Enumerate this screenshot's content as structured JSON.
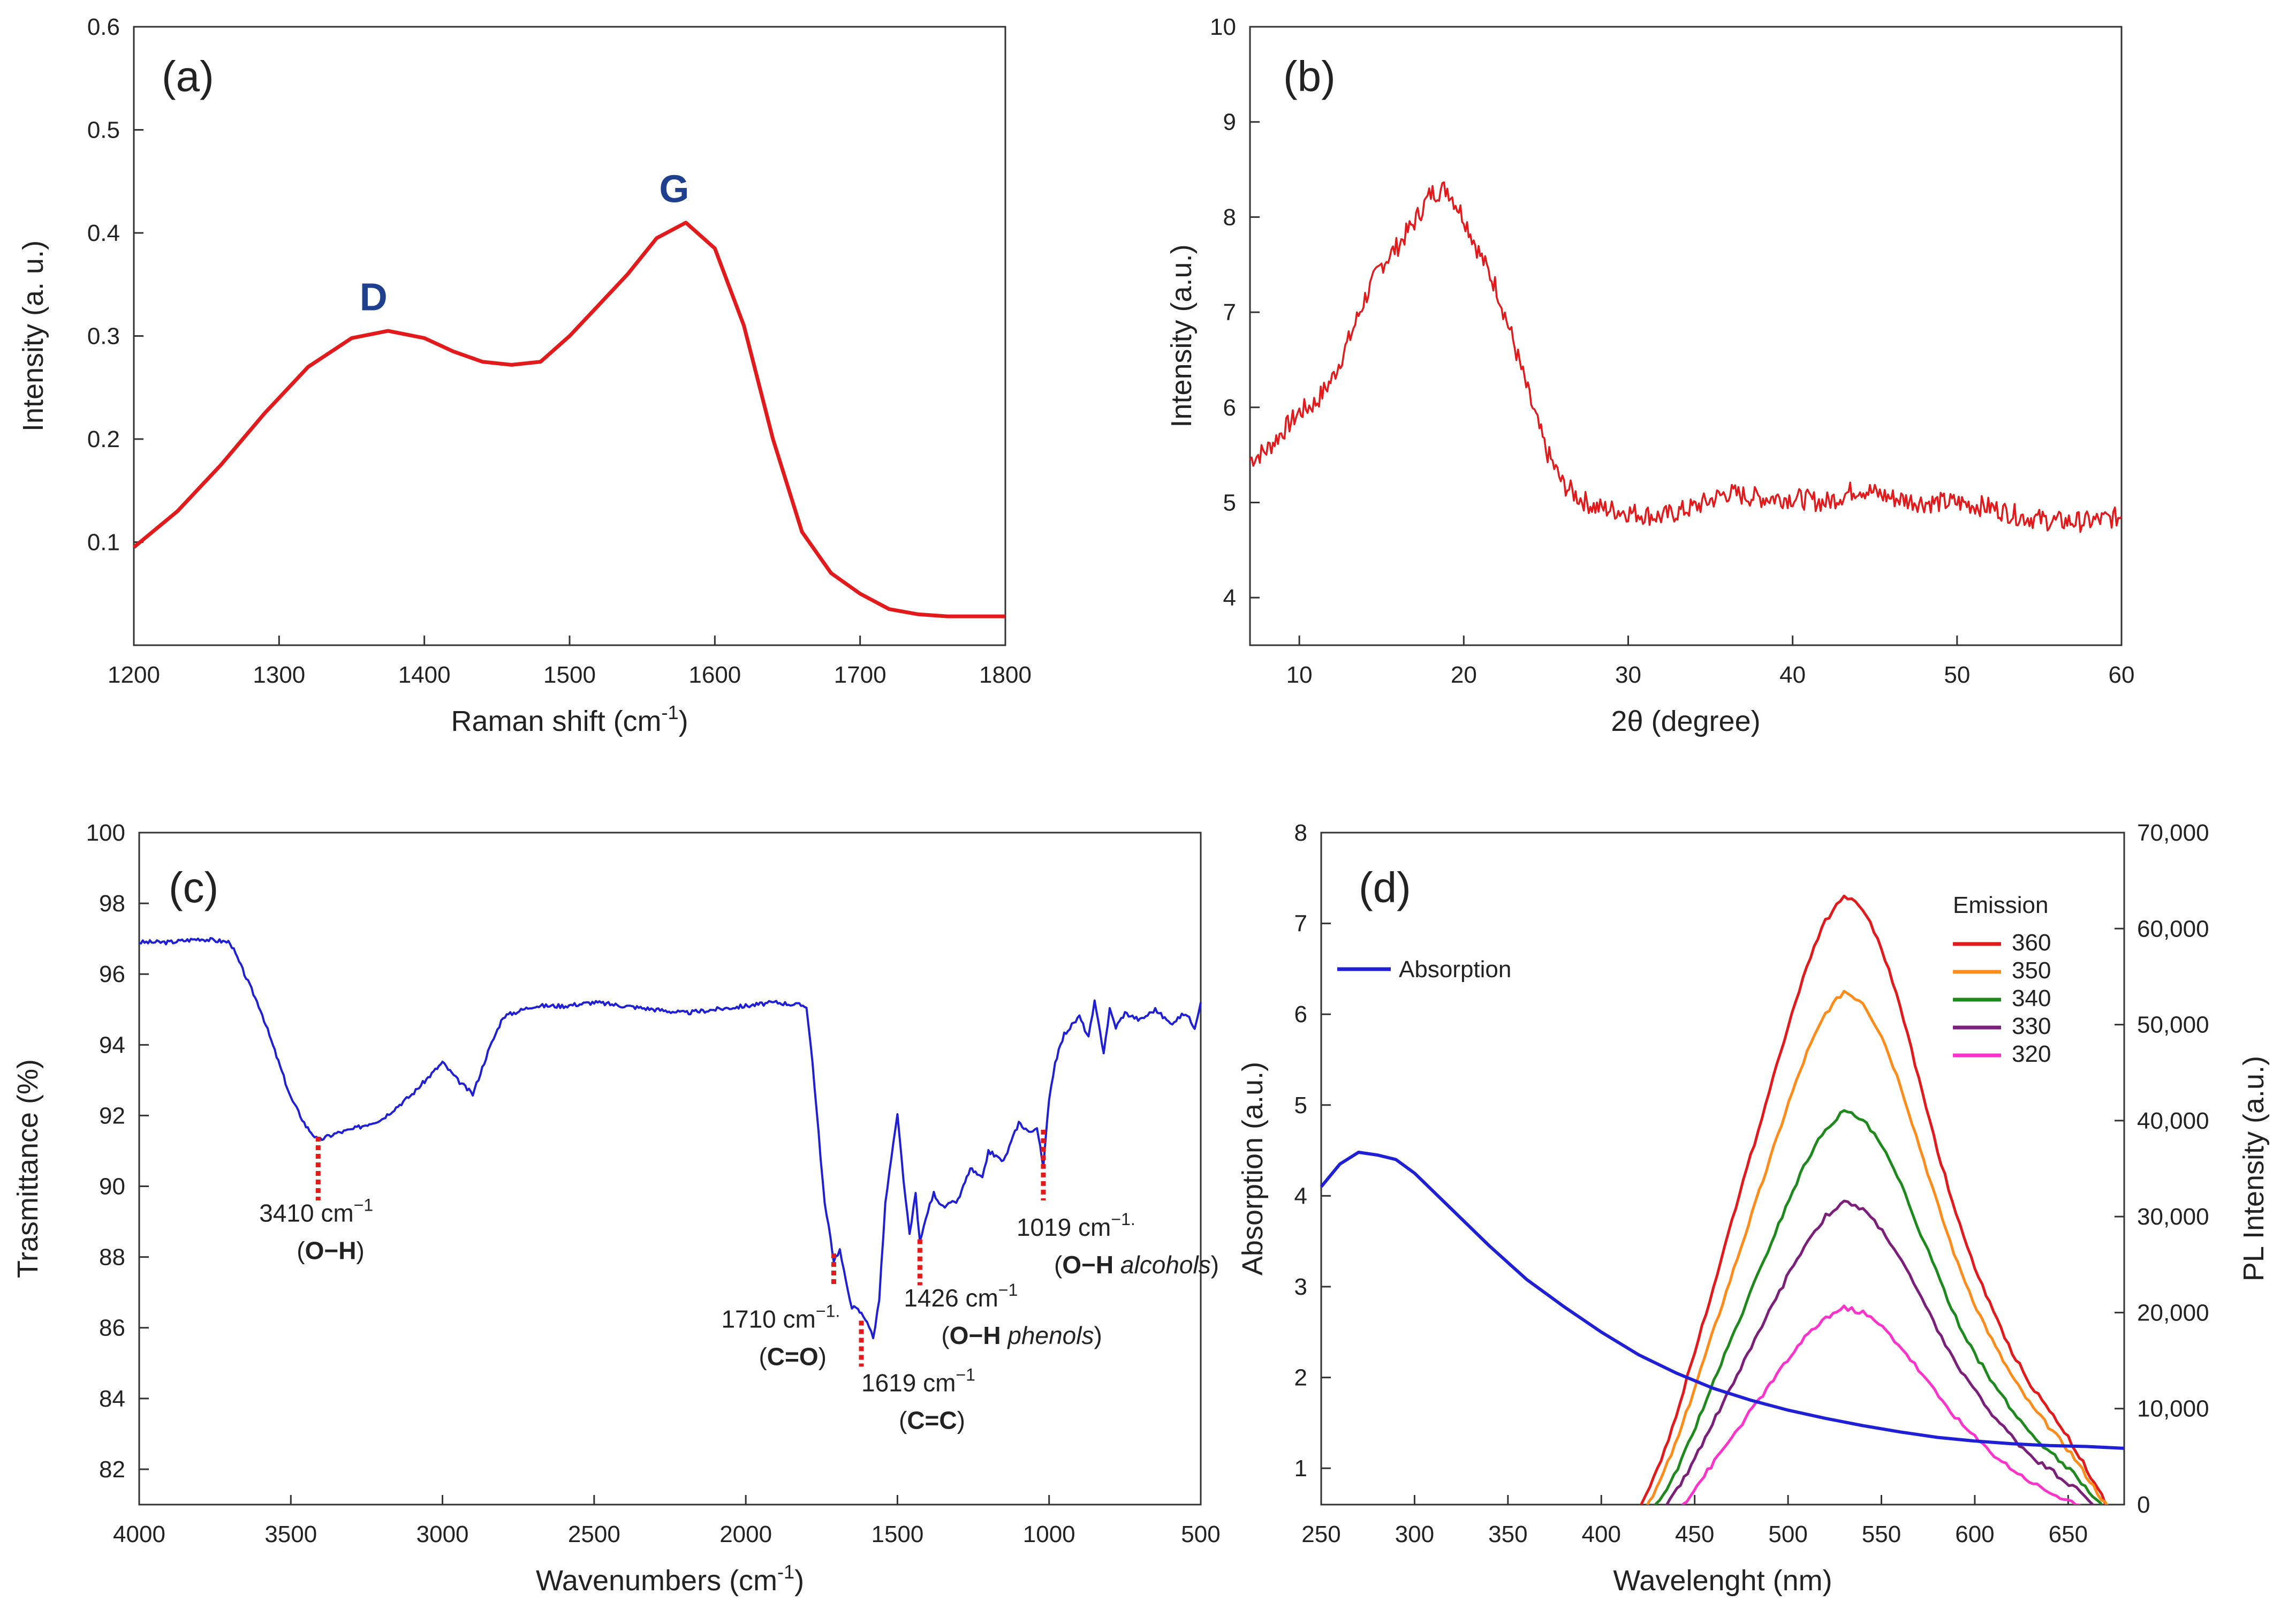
{
  "chart_data": [
    {
      "id": "a",
      "type": "line",
      "panel_label": "(a)",
      "xlabel": "Raman shift (cm",
      "xlabel_sup": "-1",
      "xlabel_end": ")",
      "ylabel": "Intensity (a. u.)",
      "xlim": [
        1200,
        1800
      ],
      "ylim": [
        0,
        0.6
      ],
      "xticks": [
        1200,
        1300,
        1400,
        1500,
        1600,
        1700,
        1800
      ],
      "yticks": [
        0.1,
        0.2,
        0.3,
        0.4,
        0.5,
        0.6
      ],
      "series": [
        {
          "name": "Raman",
          "color": "#e31a1c",
          "x": [
            1200,
            1230,
            1260,
            1290,
            1320,
            1350,
            1375,
            1400,
            1420,
            1440,
            1460,
            1480,
            1500,
            1520,
            1540,
            1560,
            1580,
            1600,
            1620,
            1640,
            1660,
            1680,
            1700,
            1720,
            1740,
            1760,
            1800
          ],
          "y": [
            0.095,
            0.13,
            0.175,
            0.225,
            0.27,
            0.298,
            0.305,
            0.298,
            0.285,
            0.275,
            0.272,
            0.275,
            0.3,
            0.33,
            0.36,
            0.395,
            0.41,
            0.385,
            0.31,
            0.2,
            0.11,
            0.07,
            0.05,
            0.035,
            0.03,
            0.028,
            0.028
          ]
        }
      ],
      "annotations": [
        {
          "text": "D",
          "x": 1365,
          "y": 0.325
        },
        {
          "text": "G",
          "x": 1572,
          "y": 0.43
        }
      ]
    },
    {
      "id": "b",
      "type": "line",
      "panel_label": "(b)",
      "xlabel": "2θ (degree)",
      "ylabel": "Intensity (a.u.)",
      "xlim": [
        7,
        60
      ],
      "ylim": [
        3.5,
        10
      ],
      "xticks": [
        10,
        20,
        30,
        40,
        50,
        60
      ],
      "yticks": [
        4,
        5,
        6,
        7,
        8,
        9,
        10
      ],
      "series": [
        {
          "name": "XRD",
          "color": "#e31a1c",
          "x": [
            7,
            8,
            9,
            10,
            11,
            12,
            13,
            14,
            15,
            16,
            17,
            18,
            19,
            20,
            21,
            22,
            23,
            24,
            25,
            26,
            27,
            28,
            30,
            32,
            34,
            36,
            38,
            40,
            42,
            44,
            46,
            48,
            50,
            52,
            54,
            56,
            58,
            60
          ],
          "y": [
            5.45,
            5.55,
            5.75,
            5.95,
            6.05,
            6.3,
            6.7,
            7.15,
            7.5,
            7.7,
            7.95,
            8.25,
            8.3,
            8.0,
            7.6,
            7.25,
            6.7,
            6.1,
            5.55,
            5.2,
            5.05,
            4.95,
            4.9,
            4.85,
            4.95,
            5.1,
            5.05,
            5.05,
            5.0,
            5.15,
            5.05,
            5.0,
            5.0,
            4.95,
            4.85,
            4.8,
            4.8,
            4.85
          ]
        }
      ]
    },
    {
      "id": "c",
      "type": "line",
      "panel_label": "(c)",
      "xlabel": "Wavenumbers (cm",
      "xlabel_sup": "-1",
      "xlabel_end": ")",
      "ylabel": "Trasmittance (%)",
      "xlim": [
        4000,
        500
      ],
      "ylim": [
        81,
        100
      ],
      "xticks": [
        4000,
        3500,
        3000,
        2500,
        2000,
        1500,
        1000,
        500
      ],
      "yticks": [
        82,
        84,
        86,
        88,
        90,
        92,
        94,
        96,
        98,
        100
      ],
      "series": [
        {
          "name": "FTIR",
          "color": "#1f1fd6",
          "x": [
            4000,
            3900,
            3800,
            3700,
            3600,
            3500,
            3450,
            3410,
            3350,
            3300,
            3200,
            3100,
            3000,
            2950,
            2900,
            2850,
            2800,
            2700,
            2600,
            2500,
            2400,
            2300,
            2200,
            2100,
            2000,
            1900,
            1800,
            1780,
            1760,
            1740,
            1720,
            1710,
            1690,
            1670,
            1650,
            1630,
            1619,
            1600,
            1580,
            1560,
            1540,
            1520,
            1500,
            1480,
            1460,
            1440,
            1426,
            1400,
            1380,
            1350,
            1300,
            1260,
            1220,
            1200,
            1150,
            1100,
            1060,
            1040,
            1019,
            1000,
            980,
            950,
            900,
            870,
            850,
            820,
            800,
            780,
            750,
            700,
            650,
            600,
            550,
            520,
            500
          ],
          "y": [
            96.9,
            96.9,
            97.0,
            96.9,
            95.0,
            92.5,
            91.7,
            91.3,
            91.5,
            91.6,
            91.9,
            92.6,
            93.5,
            93.0,
            92.6,
            93.8,
            94.8,
            95.1,
            95.1,
            95.2,
            95.1,
            95.0,
            94.9,
            95.0,
            95.1,
            95.2,
            95.1,
            93.5,
            91.5,
            89.5,
            88.5,
            87.9,
            88.2,
            87.3,
            86.6,
            86.5,
            86.4,
            86.2,
            85.7,
            86.8,
            89.5,
            90.8,
            92.0,
            90.2,
            88.6,
            89.8,
            88.4,
            89.3,
            89.8,
            89.4,
            89.6,
            90.5,
            90.2,
            91.0,
            90.7,
            91.8,
            91.5,
            91.7,
            90.5,
            92.5,
            93.5,
            94.3,
            94.8,
            94.2,
            95.2,
            93.8,
            95.0,
            94.5,
            94.9,
            94.7,
            95.0,
            94.6,
            94.9,
            94.5,
            95.2
          ]
        }
      ],
      "annotations": [
        {
          "line1": "3410 cm",
          "sup": "−1",
          "line2_bold": "O−H",
          "line2_italic": "",
          "x": 3410
        },
        {
          "line1": "1710 cm",
          "sup": "−1.",
          "line2_bold": "C=O",
          "line2_italic": "",
          "x": 1710
        },
        {
          "line1": "1619 cm",
          "sup": "−1",
          "line2_bold": "C=C",
          "line2_italic": "",
          "x": 1619
        },
        {
          "line1": "1426 cm",
          "sup": "−1",
          "line2_bold": "O−H",
          "line2_italic": "phenols",
          "x": 1426
        },
        {
          "line1": "1019 cm",
          "sup": "−1.",
          "line2_bold": "O−H",
          "line2_italic": "alcohols",
          "x": 1019
        }
      ]
    },
    {
      "id": "d",
      "type": "line",
      "panel_label": "(d)",
      "xlabel": "Wavelenght (nm)",
      "ylabel": "Absorption (a.u.)",
      "ylabel_right": "PL Intensity (a.u.)",
      "xlim": [
        250,
        680
      ],
      "ylim": [
        0.6,
        8
      ],
      "ylim_right": [
        0,
        70000
      ],
      "xticks": [
        250,
        300,
        350,
        400,
        450,
        500,
        550,
        600,
        650
      ],
      "yticks": [
        1,
        2,
        3,
        4,
        5,
        6,
        7,
        8
      ],
      "yticks_right": [
        "0",
        "10,000",
        "20,000",
        "30,000",
        "40,000",
        "50,000",
        "60,000",
        "70,000"
      ],
      "yticks_right_values": [
        0,
        10000,
        20000,
        30000,
        40000,
        50000,
        60000,
        70000
      ],
      "absorption": {
        "name": "Absorption",
        "color": "#1f1fd6",
        "x": [
          250,
          260,
          270,
          280,
          290,
          300,
          320,
          340,
          360,
          380,
          400,
          420,
          440,
          460,
          480,
          500,
          520,
          540,
          560,
          580,
          600,
          620,
          640,
          660,
          680
        ],
        "y": [
          4.1,
          4.35,
          4.48,
          4.45,
          4.4,
          4.25,
          3.85,
          3.45,
          3.08,
          2.78,
          2.5,
          2.25,
          2.05,
          1.88,
          1.75,
          1.64,
          1.55,
          1.47,
          1.4,
          1.34,
          1.3,
          1.27,
          1.25,
          1.24,
          1.22
        ]
      },
      "legend_title": "Emission",
      "emission": [
        {
          "name": "360",
          "color": "#e31a1c",
          "peak": 63500
        },
        {
          "name": "350",
          "color": "#ff8c1a",
          "peak": 53500
        },
        {
          "name": "340",
          "color": "#1e8a1e",
          "peak": 41000
        },
        {
          "name": "330",
          "color": "#7b1f7b",
          "peak": 31500
        },
        {
          "name": "320",
          "color": "#ff33cc",
          "peak": 20500
        }
      ],
      "emission_x": [
        400,
        410,
        420,
        430,
        440,
        450,
        460,
        470,
        480,
        490,
        500,
        510,
        520,
        530,
        540,
        550,
        560,
        570,
        580,
        590,
        600,
        610,
        620,
        630,
        640,
        650,
        660,
        670,
        680
      ],
      "emission_shape": [
        0.0,
        0.02,
        0.06,
        0.12,
        0.2,
        0.3,
        0.4,
        0.5,
        0.6,
        0.7,
        0.8,
        0.89,
        0.96,
        1.0,
        0.98,
        0.92,
        0.83,
        0.72,
        0.61,
        0.51,
        0.43,
        0.36,
        0.3,
        0.25,
        0.21,
        0.17,
        0.12,
        0.07,
        0.03
      ]
    }
  ]
}
